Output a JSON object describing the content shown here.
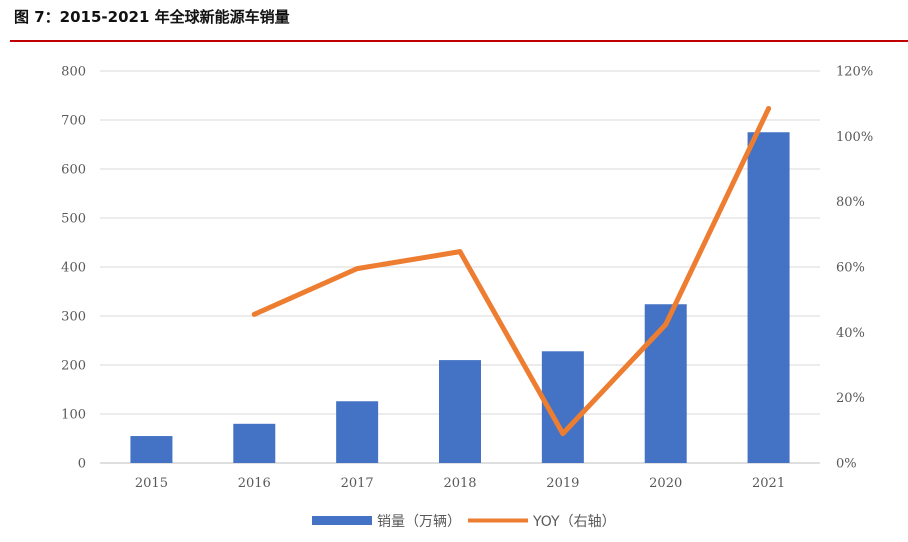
{
  "figure": {
    "title": "图 7：2015-2021 年全球新能源车销量"
  },
  "colors": {
    "bar": "#4472c4",
    "line": "#ed7d31",
    "grid": "#d9d9d9",
    "rule": "#c00000"
  },
  "chart_data": {
    "type": "bar",
    "title": "",
    "categories": [
      "2015",
      "2016",
      "2017",
      "2018",
      "2019",
      "2020",
      "2021"
    ],
    "series": [
      {
        "name": "销量（万辆）",
        "type": "bar",
        "axis": "left",
        "values": [
          55,
          80,
          126,
          210,
          228,
          324,
          675
        ]
      },
      {
        "name": "YOY（右轴）",
        "type": "line",
        "axis": "right",
        "values": [
          null,
          45.5,
          59.5,
          64.7,
          9.0,
          42.4,
          108.5
        ]
      }
    ],
    "y_left": {
      "ylim": [
        0,
        800
      ],
      "ticks": [
        "0",
        "100",
        "200",
        "300",
        "400",
        "500",
        "600",
        "700",
        "800"
      ]
    },
    "y_right": {
      "ylim": [
        0,
        120
      ],
      "ticks": [
        "0%",
        "20%",
        "40%",
        "60%",
        "80%",
        "100%",
        "120%"
      ]
    },
    "grid": true,
    "legend_position": "bottom"
  }
}
